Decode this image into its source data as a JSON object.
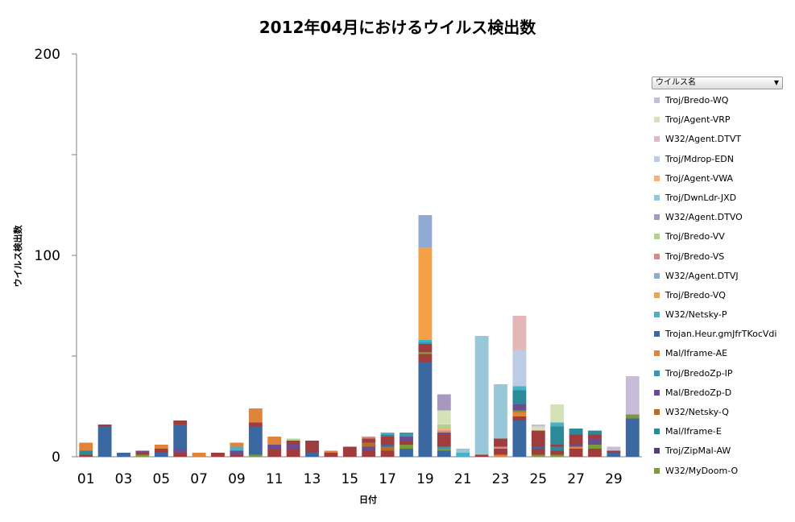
{
  "title": "2012年04月におけるウイルス検出数",
  "legend_filter": {
    "label": "ウイルス名",
    "icon": "dropdown-arrow-icon"
  },
  "chart_data": {
    "type": "bar",
    "stacked": true,
    "title": "2012年04月におけるウイルス検出数",
    "xlabel": "日付",
    "ylabel": "ウイルス検出数",
    "ylim": [
      0,
      200
    ],
    "yticks": [
      0,
      100,
      200
    ],
    "grid": false,
    "legend_position": "right",
    "categories": [
      "01",
      "02",
      "03",
      "04",
      "05",
      "06",
      "07",
      "08",
      "09",
      "10",
      "11",
      "12",
      "13",
      "14",
      "15",
      "16",
      "17",
      "18",
      "19",
      "20",
      "21",
      "22",
      "23",
      "24",
      "25",
      "26",
      "27",
      "28",
      "29",
      "30"
    ],
    "xtick_labels": [
      "01",
      "03",
      "05",
      "07",
      "09",
      "11",
      "13",
      "15",
      "17",
      "19",
      "21",
      "23",
      "25",
      "27",
      "29"
    ],
    "legend": [
      "Troj/Bredo-WQ",
      "Troj/Agent-VRP",
      "W32/Agent.DTVT",
      "Troj/Mdrop-EDN",
      "Troj/Agent-VWA",
      "Troj/DwnLdr-JXD",
      "W32/Agent.DTVO",
      "Troj/Bredo-VV",
      "Troj/Bredo-VS",
      "W32/Agent.DTVJ",
      "Troj/Bredo-VQ",
      "W32/Netsky-P",
      "Trojan.Heur.gmJfrTKocVdi",
      "Mal/Iframe-AE",
      "Troj/BredoZp-IP",
      "Mal/BredoZp-D",
      "W32/Netsky-Q",
      "Mal/Iframe-E",
      "Troj/ZipMal-AW",
      "W32/MyDoom-O"
    ],
    "colors": {
      "Troj/Bredo-WQ": "#c8bcd8",
      "Troj/Agent-VRP": "#d4e2b8",
      "W32/Agent.DTVT": "#e4b8b8",
      "Troj/Mdrop-EDN": "#bccce4",
      "Troj/Agent-VWA": "#f4b080",
      "Troj/DwnLdr-JXD": "#98c8d8",
      "W32/Agent.DTVO": "#a898c0",
      "Troj/Bredo-VV": "#b4d090",
      "Troj/Bredo-VS": "#d48c88",
      "W32/Agent.DTVJ": "#90aad4",
      "Troj/Bredo-VQ": "#f4a048",
      "W32/Netsky-P": "#4ab0c8",
      "Trojan.Heur.gmJfrTKocVdi": "#3b68a0",
      "Mal/Iframe-AE": "#e0843c",
      "Troj/BredoZp-IP": "#3a98ac",
      "Mal/BredoZp-D": "#6a4c90",
      "W32/Netsky-Q": "#b86c2c",
      "Mal/Iframe-E": "#2c8a98",
      "Troj/ZipMal-AW": "#5a3c70",
      "W32/MyDoom-O": "#7a9a3c",
      "Dark-Red": "#a03c3c"
    },
    "stacks": [
      [
        [
          "Dark-Red",
          1
        ],
        [
          "Mal/Iframe-E",
          2
        ],
        [
          "Mal/Iframe-AE",
          4
        ]
      ],
      [
        [
          "Trojan.Heur.gmJfrTKocVdi",
          15
        ],
        [
          "Dark-Red",
          1
        ]
      ],
      [
        [
          "Trojan.Heur.gmJfrTKocVdi",
          2
        ]
      ],
      [
        [
          "W32/MyDoom-O",
          1
        ],
        [
          "Dark-Red",
          1
        ],
        [
          "Mal/BredoZp-D",
          1
        ]
      ],
      [
        [
          "Trojan.Heur.gmJfrTKocVdi",
          2
        ],
        [
          "Dark-Red",
          2
        ],
        [
          "Mal/Iframe-AE",
          2
        ]
      ],
      [
        [
          "Dark-Red",
          2
        ],
        [
          "Mal/BredoZp-D",
          2
        ],
        [
          "Trojan.Heur.gmJfrTKocVdi",
          12
        ],
        [
          "Dark-Red",
          2
        ]
      ],
      [
        [
          "Mal/Iframe-AE",
          2
        ]
      ],
      [
        [
          "Dark-Red",
          2
        ]
      ],
      [
        [
          "Dark-Red",
          1
        ],
        [
          "Mal/BredoZp-D",
          2
        ],
        [
          "W32/Netsky-P",
          2
        ],
        [
          "Mal/Iframe-AE",
          2
        ]
      ],
      [
        [
          "W32/MyDoom-O",
          1
        ],
        [
          "Trojan.Heur.gmJfrTKocVdi",
          14
        ],
        [
          "Dark-Red",
          2
        ],
        [
          "Mal/Iframe-AE",
          7
        ]
      ],
      [
        [
          "Dark-Red",
          4
        ],
        [
          "Mal/BredoZp-D",
          2
        ],
        [
          "Mal/Iframe-AE",
          4
        ]
      ],
      [
        [
          "Dark-Red",
          4
        ],
        [
          "Mal/BredoZp-D",
          2
        ],
        [
          "Dark-Red",
          2
        ],
        [
          "Troj/Bredo-VV",
          1
        ]
      ],
      [
        [
          "Trojan.Heur.gmJfrTKocVdi",
          2
        ],
        [
          "Dark-Red",
          6
        ]
      ],
      [
        [
          "Dark-Red",
          2
        ],
        [
          "Mal/Iframe-AE",
          1
        ]
      ],
      [
        [
          "Dark-Red",
          5
        ]
      ],
      [
        [
          "Dark-Red",
          3
        ],
        [
          "Mal/BredoZp-D",
          2
        ],
        [
          "W32/Netsky-Q",
          2
        ],
        [
          "Dark-Red",
          2
        ],
        [
          "Troj/Bredo-VS",
          1
        ]
      ],
      [
        [
          "Dark-Red",
          3
        ],
        [
          "W32/Netsky-Q",
          2
        ],
        [
          "Trojan.Heur.gmJfrTKocVdi",
          1
        ],
        [
          "Dark-Red",
          4
        ],
        [
          "Mal/Iframe-E",
          1
        ],
        [
          "W32/Netsky-P",
          1
        ]
      ],
      [
        [
          "Trojan.Heur.gmJfrTKocVdi",
          4
        ],
        [
          "W32/MyDoom-O",
          2
        ],
        [
          "Dark-Red",
          2
        ],
        [
          "Mal/BredoZp-D",
          2
        ],
        [
          "Troj/BredoZp-IP",
          2
        ]
      ],
      [
        [
          "Trojan.Heur.gmJfrTKocVdi",
          47
        ],
        [
          "Dark-Red",
          4
        ],
        [
          "W32/MyDoom-O",
          1
        ],
        [
          "Dark-Red",
          4
        ],
        [
          "Troj/BredoZp-IP",
          1
        ],
        [
          "W32/Netsky-P",
          1
        ],
        [
          "Troj/Bredo-VQ",
          46
        ],
        [
          "W32/Agent.DTVJ",
          16
        ]
      ],
      [
        [
          "Trojan.Heur.gmJfrTKocVdi",
          3
        ],
        [
          "W32/MyDoom-O",
          1
        ],
        [
          "Troj/BredoZp-IP",
          1
        ],
        [
          "Dark-Red",
          6
        ],
        [
          "Mal/BredoZp-D",
          1
        ],
        [
          "Troj/Bredo-VS",
          1
        ],
        [
          "Troj/Agent-VWA",
          1
        ],
        [
          "Troj/Bredo-VV",
          2
        ],
        [
          "Troj/Agent-VRP",
          7
        ],
        [
          "W32/Agent.DTVO",
          8
        ]
      ],
      [
        [
          "W32/Netsky-P",
          2
        ],
        [
          "Troj/DwnLdr-JXD",
          2
        ]
      ],
      [
        [
          "Dark-Red",
          1
        ],
        [
          "Troj/DwnLdr-JXD",
          59
        ]
      ],
      [
        [
          "Mal/Iframe-AE",
          1
        ],
        [
          "Dark-Red",
          3
        ],
        [
          "Troj/Bredo-VS",
          1
        ],
        [
          "Dark-Red",
          4
        ],
        [
          "Troj/DwnLdr-JXD",
          27
        ]
      ],
      [
        [
          "Trojan.Heur.gmJfrTKocVdi",
          18
        ],
        [
          "Dark-Red",
          2
        ],
        [
          "Mal/Iframe-AE",
          2
        ],
        [
          "W32/MyDoom-O",
          1
        ],
        [
          "Mal/BredoZp-D",
          3
        ],
        [
          "Mal/Iframe-E",
          7
        ],
        [
          "W32/Netsky-P",
          2
        ],
        [
          "Troj/Mdrop-EDN",
          18
        ],
        [
          "W32/Agent.DTVT",
          17
        ]
      ],
      [
        [
          "W32/MyDoom-O",
          1
        ],
        [
          "Dark-Red",
          3
        ],
        [
          "Trojan.Heur.gmJfrTKocVdi",
          1
        ],
        [
          "Dark-Red",
          8
        ],
        [
          "Troj/Agent-VRP",
          2
        ],
        [
          "Troj/Bredo-WQ",
          1
        ]
      ],
      [
        [
          "W32/MyDoom-O",
          1
        ],
        [
          "Dark-Red",
          2
        ],
        [
          "Mal/Iframe-E",
          2
        ],
        [
          "Dark-Red",
          1
        ],
        [
          "Mal/Iframe-E",
          9
        ],
        [
          "W32/Netsky-P",
          2
        ],
        [
          "Troj/Agent-VRP",
          9
        ]
      ],
      [
        [
          "Dark-Red",
          4
        ],
        [
          "Mal/Iframe-AE",
          1
        ],
        [
          "Mal/BredoZp-D",
          1
        ],
        [
          "Dark-Red",
          5
        ],
        [
          "Mal/Iframe-E",
          3
        ]
      ],
      [
        [
          "Dark-Red",
          4
        ],
        [
          "W32/MyDoom-O",
          2
        ],
        [
          "Mal/BredoZp-D",
          3
        ],
        [
          "Dark-Red",
          2
        ],
        [
          "Mal/Iframe-E",
          2
        ]
      ],
      [
        [
          "Trojan.Heur.gmJfrTKocVdi",
          2
        ],
        [
          "Dark-Red",
          1
        ],
        [
          "Troj/Bredo-WQ",
          2
        ]
      ],
      [
        [
          "Trojan.Heur.gmJfrTKocVdi",
          19
        ],
        [
          "W32/MyDoom-O",
          2
        ],
        [
          "Troj/Bredo-WQ",
          19
        ]
      ]
    ]
  }
}
